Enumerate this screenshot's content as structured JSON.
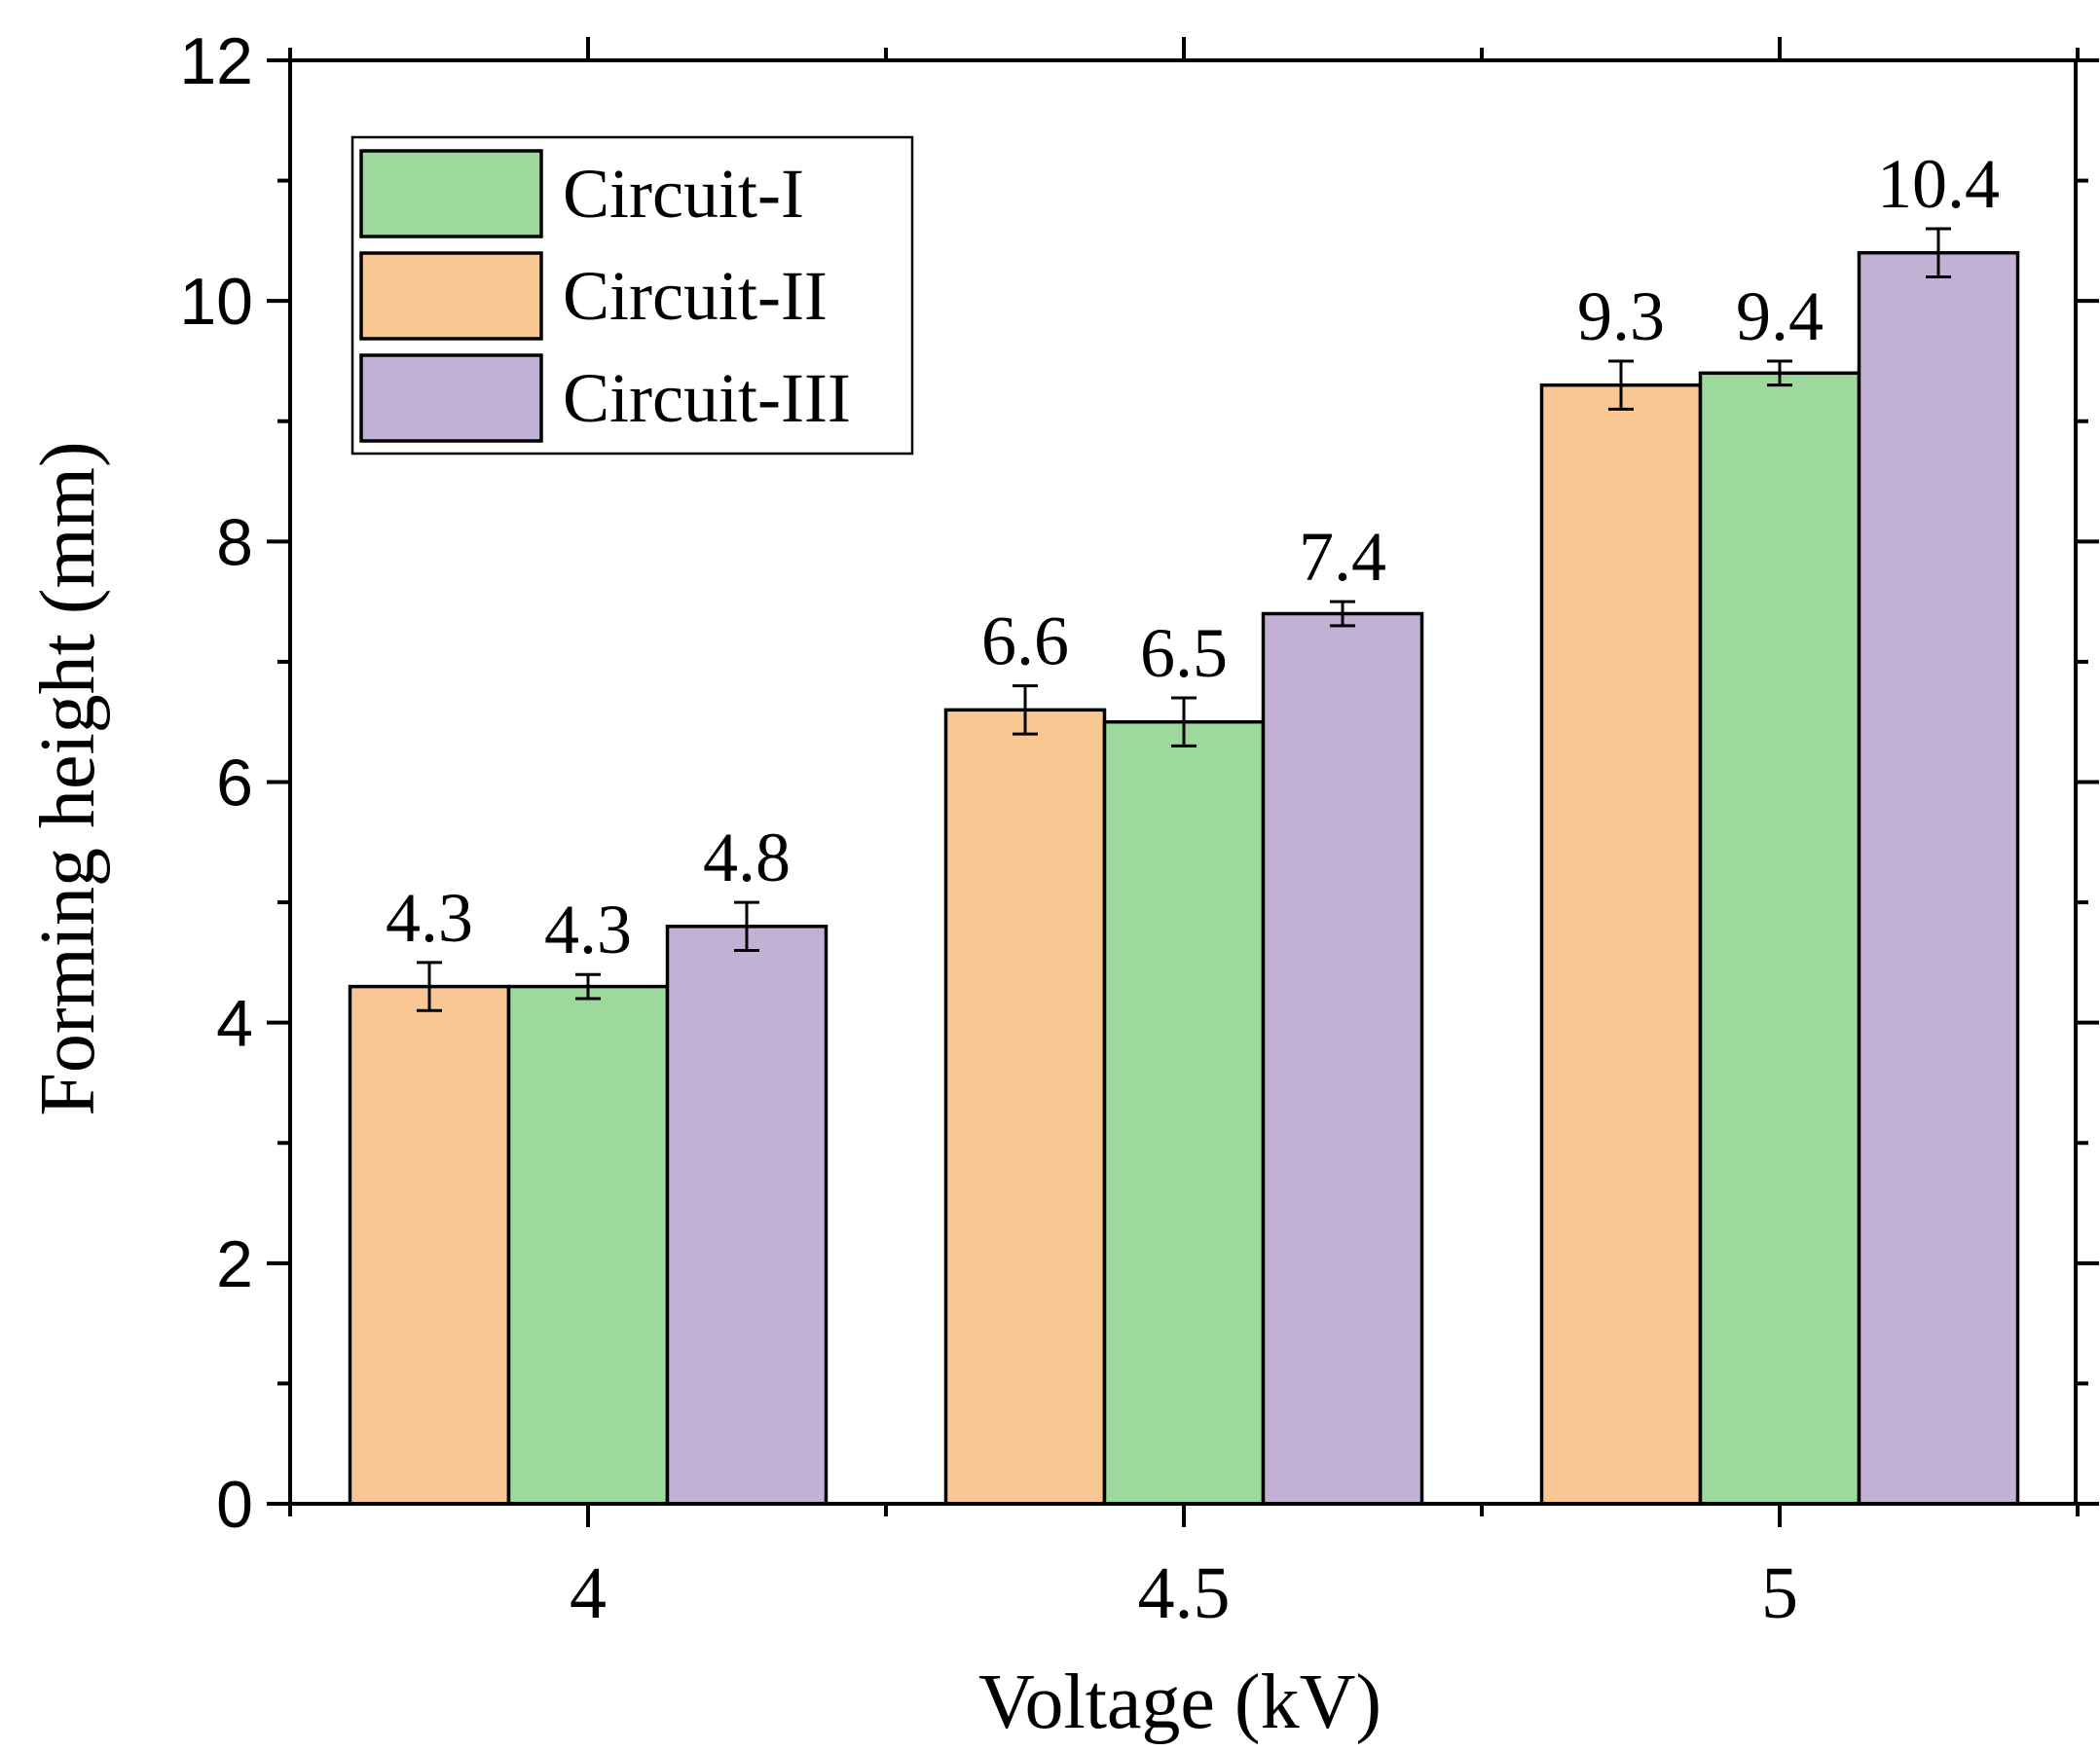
{
  "chart_data": {
    "type": "bar",
    "title": "",
    "xlabel": "Voltage (kV)",
    "ylabel": "Forming height (mm)",
    "ylim": [
      0,
      12
    ],
    "yticks": [
      "0",
      "2",
      "4",
      "6",
      "8",
      "10",
      "12"
    ],
    "categories": [
      "4",
      "4.5",
      "5"
    ],
    "series": [
      {
        "name": "Circuit-II",
        "color": "#F8C794",
        "values": [
          4.3,
          6.6,
          9.3
        ],
        "errors": [
          0.2,
          0.2,
          0.2
        ],
        "labels": [
          "4.3",
          "6.6",
          "9.3"
        ]
      },
      {
        "name": "Circuit-I",
        "color": "#9DD99C",
        "values": [
          4.3,
          6.5,
          9.4
        ],
        "errors": [
          0.1,
          0.2,
          0.1
        ],
        "labels": [
          "4.3",
          "6.5",
          "9.4"
        ]
      },
      {
        "name": "Circuit-III",
        "color": "#C2B1D5",
        "values": [
          4.8,
          7.4,
          10.4
        ],
        "errors": [
          0.2,
          0.1,
          0.2
        ],
        "labels": [
          "4.8",
          "7.4",
          "10.4"
        ]
      }
    ],
    "legend": {
      "placement": "top-left",
      "entries": [
        {
          "label": "Circuit-I",
          "color": "#9DD99C"
        },
        {
          "label": "Circuit-II",
          "color": "#F8C794"
        },
        {
          "label": "Circuit-III",
          "color": "#C2B1D5"
        }
      ]
    }
  }
}
